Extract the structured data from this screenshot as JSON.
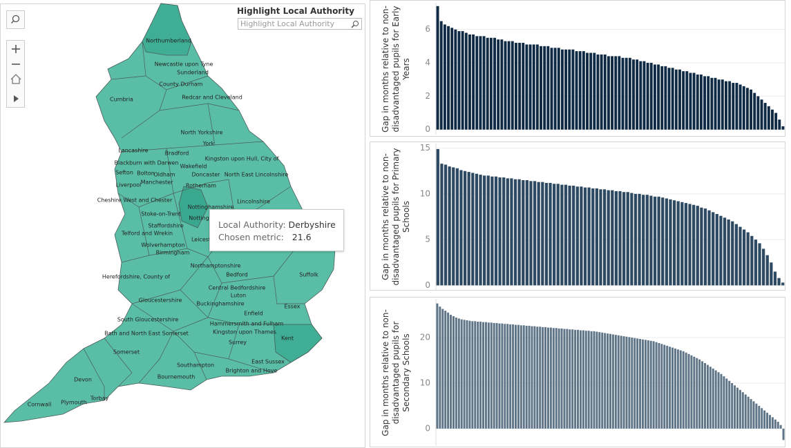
{
  "map": {
    "search_title": "Highlight Local Authority",
    "search_placeholder": "Highlight Local Authority",
    "labels": [
      "Northumberland",
      "Newcastle upon Tyne",
      "Sunderland",
      "County Durham",
      "Cumbria",
      "Redcar and Cleveland",
      "North Yorkshire",
      "York",
      "Lancashire",
      "Bradford",
      "Kingston upon Hull, City of",
      "Blackburn with Darwen",
      "Wakefield",
      "Sefton",
      "Bolton",
      "Oldham",
      "Doncaster",
      "North East Lincolnshire",
      "Manchester",
      "Liverpool",
      "Rotherham",
      "Cheshire West and Chester",
      "Lincolnshire",
      "Nottinghamshire",
      "Stoke-on-Trent",
      "Notting",
      "Staffordshire",
      "Telford and Wrekin",
      "Leicest",
      "Wolverhampton",
      "Birmingham",
      "Northamptonshire",
      "Suffolk",
      "Herefordshire, County of",
      "Bedford",
      "Central Bedfordshire",
      "Luton",
      "Gloucestershire",
      "Buckinghamshire",
      "Essex",
      "Enfield",
      "South Gloucestershire",
      "Hammersmith and Fulham",
      "Kingston upon Thames",
      "Bath and North East Somerset",
      "Kent",
      "Surrey",
      "Somerset",
      "East Sussex",
      "Southampton",
      "Brighton and Hove",
      "Bournemouth",
      "Devon",
      "Torbay",
      "Cornwall",
      "Plymouth"
    ],
    "tooltip": {
      "authority_label": "Local Authority:",
      "authority": "Derbyshire",
      "metric_label": "Chosen metric:",
      "metric": "21.6"
    }
  },
  "chart_data": [
    {
      "type": "bar",
      "y_label": "Gap in months relative to non-disadvantaged pupils for Early Years",
      "color": "#0f2a44",
      "ylim": [
        -0.3,
        7.6
      ],
      "yticks": [
        0,
        2,
        4,
        6
      ],
      "grid": true,
      "values": [
        7.4,
        6.5,
        6.3,
        6.2,
        6.1,
        6.0,
        5.9,
        5.9,
        5.8,
        5.7,
        5.7,
        5.6,
        5.6,
        5.6,
        5.5,
        5.5,
        5.5,
        5.4,
        5.4,
        5.3,
        5.3,
        5.3,
        5.2,
        5.2,
        5.2,
        5.1,
        5.1,
        5.1,
        5.1,
        5.0,
        5.0,
        5.0,
        4.9,
        4.9,
        4.9,
        4.8,
        4.8,
        4.8,
        4.8,
        4.7,
        4.7,
        4.7,
        4.6,
        4.6,
        4.6,
        4.5,
        4.5,
        4.5,
        4.4,
        4.4,
        4.4,
        4.4,
        4.3,
        4.3,
        4.3,
        4.2,
        4.2,
        4.1,
        4.1,
        4.0,
        4.0,
        3.9,
        3.9,
        3.8,
        3.8,
        3.7,
        3.7,
        3.6,
        3.6,
        3.5,
        3.5,
        3.4,
        3.4,
        3.3,
        3.3,
        3.2,
        3.2,
        3.1,
        3.1,
        3.0,
        3.0,
        2.9,
        2.9,
        2.8,
        2.8,
        2.7,
        2.6,
        2.5,
        2.4,
        2.2,
        2.0,
        1.8,
        1.6,
        1.4,
        1.2,
        1.0,
        0.6,
        0.2
      ]
    },
    {
      "type": "bar",
      "y_label": "Gap in months relative to non-disadvantaged pupils for Primary Schools",
      "color": "#2e4a63",
      "ylim": [
        -0.5,
        15.5
      ],
      "yticks": [
        0,
        5,
        10,
        15
      ],
      "grid": true,
      "values": [
        14.9,
        13.3,
        13.2,
        13.0,
        12.9,
        12.8,
        12.6,
        12.5,
        12.4,
        12.3,
        12.2,
        12.1,
        12.0,
        12.0,
        11.9,
        11.9,
        11.8,
        11.8,
        11.7,
        11.7,
        11.6,
        11.6,
        11.5,
        11.5,
        11.4,
        11.4,
        11.3,
        11.3,
        11.2,
        11.2,
        11.1,
        11.1,
        11.0,
        11.0,
        10.9,
        10.9,
        10.8,
        10.8,
        10.7,
        10.7,
        10.6,
        10.6,
        10.5,
        10.5,
        10.4,
        10.4,
        10.3,
        10.3,
        10.2,
        10.2,
        10.1,
        10.0,
        10.0,
        9.9,
        9.9,
        9.8,
        9.7,
        9.7,
        9.6,
        9.5,
        9.4,
        9.3,
        9.2,
        9.1,
        9.0,
        8.9,
        8.8,
        8.7,
        8.5,
        8.4,
        8.2,
        8.0,
        7.8,
        7.6,
        7.4,
        7.2,
        7.0,
        6.7,
        6.4,
        6.1,
        5.8,
        5.4,
        5.0,
        4.6,
        4.0,
        3.3,
        2.5,
        1.5,
        0.8,
        0.3
      ]
    },
    {
      "type": "bar",
      "y_label": "Gap in months relative to non-disadvantaged pupils for Secondary Schools",
      "color": "#5f7587",
      "ylim": [
        -3.8,
        28.5
      ],
      "yticks": [
        0,
        10,
        20
      ],
      "grid": true,
      "values": [
        27.5,
        26.8,
        26.3,
        25.9,
        25.5,
        25.0,
        24.7,
        24.4,
        24.2,
        24.0,
        23.9,
        23.8,
        23.7,
        23.6,
        23.6,
        23.5,
        23.5,
        23.4,
        23.4,
        23.3,
        23.3,
        23.2,
        23.2,
        23.1,
        23.1,
        23.0,
        23.0,
        22.9,
        22.9,
        22.8,
        22.8,
        22.7,
        22.7,
        22.6,
        22.6,
        22.5,
        22.5,
        22.4,
        22.4,
        22.3,
        22.3,
        22.2,
        22.2,
        22.1,
        22.1,
        22.0,
        22.0,
        21.9,
        21.9,
        21.8,
        21.8,
        21.7,
        21.7,
        21.6,
        21.6,
        21.5,
        21.5,
        21.4,
        21.4,
        21.3,
        21.2,
        21.1,
        21.0,
        20.9,
        20.8,
        20.7,
        20.6,
        20.5,
        20.4,
        20.3,
        20.2,
        20.1,
        20.0,
        19.9,
        19.8,
        19.7,
        19.6,
        19.5,
        19.4,
        19.3,
        19.2,
        19.0,
        18.8,
        18.6,
        18.4,
        18.2,
        18.0,
        17.8,
        17.6,
        17.4,
        17.2,
        17.0,
        16.7,
        16.4,
        16.1,
        15.8,
        15.5,
        15.2,
        14.8,
        14.4,
        14.0,
        13.6,
        13.2,
        12.8,
        12.4,
        12.0,
        11.5,
        11.0,
        10.5,
        10.0,
        9.5,
        9.0,
        8.5,
        8.0,
        7.5,
        7.0,
        6.5,
        6.0,
        5.5,
        5.0,
        4.5,
        4.0,
        3.5,
        3.0,
        2.5,
        2.0,
        1.5,
        0.8,
        -2.5
      ]
    }
  ]
}
